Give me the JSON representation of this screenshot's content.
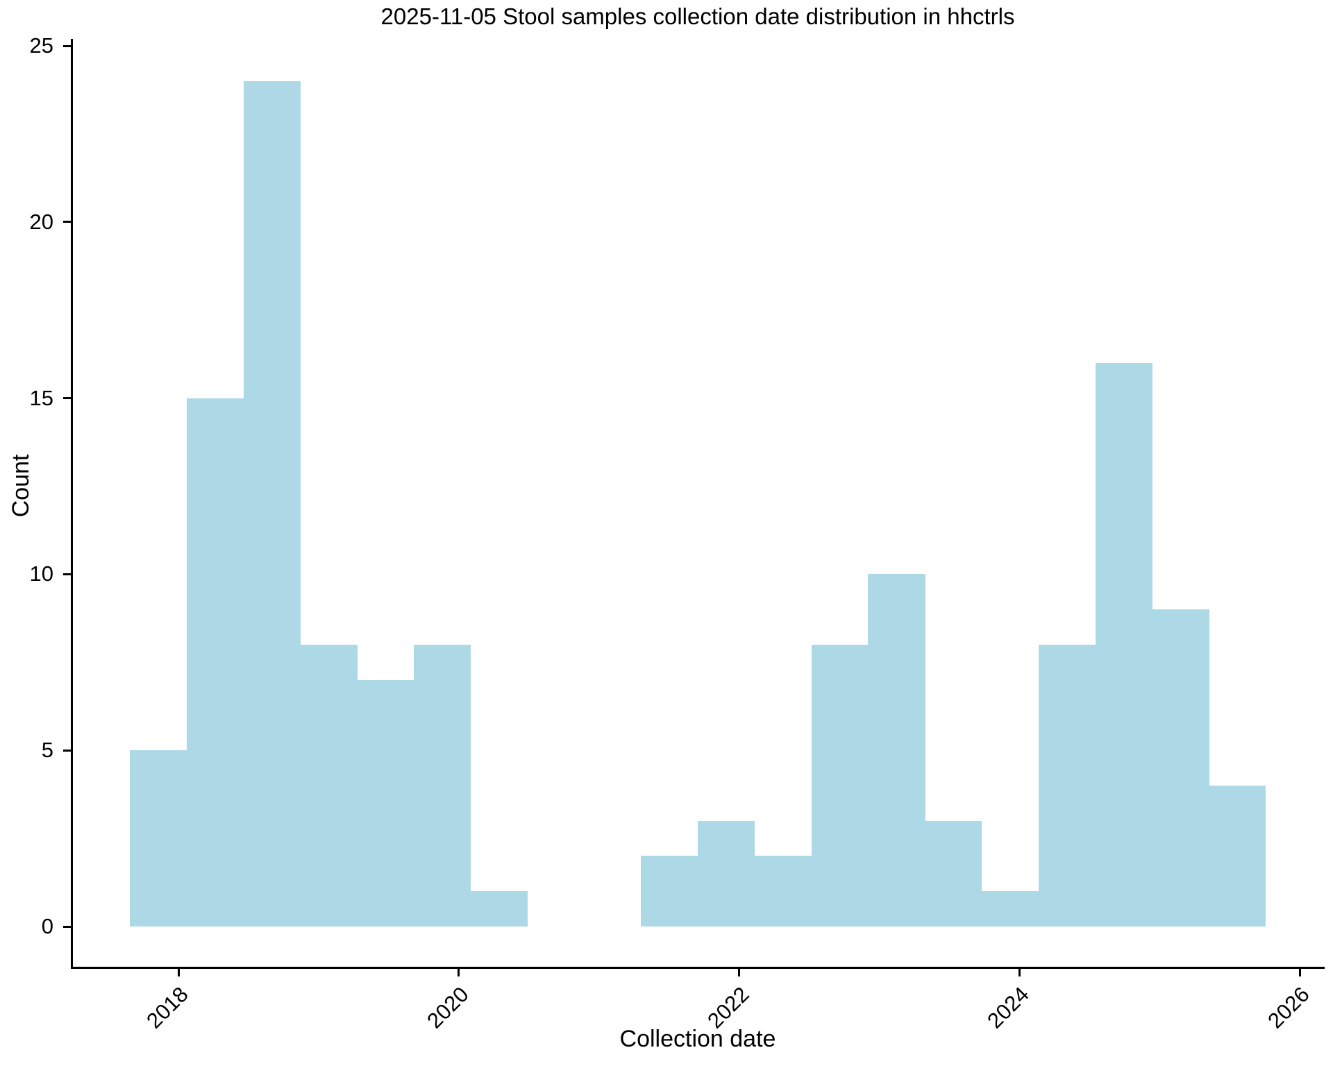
{
  "chart_data": {
    "type": "bar",
    "subtype": "histogram",
    "title": "2025-11-05 Stool samples collection date distribution in hhctrls",
    "xlabel": "Collection date",
    "ylabel": "Count",
    "bar_color": "#ADD8E6",
    "axis_color": "#000000",
    "background_color": "#ffffff",
    "grid": false,
    "legend": false,
    "ylim": [
      0,
      25
    ],
    "xlim_years": [
      2017.25,
      2026.2
    ],
    "x_tick_labels": [
      "2018",
      "2020",
      "2022",
      "2024",
      "2026"
    ],
    "y_tick_labels": [
      "0",
      "5",
      "10",
      "15",
      "20",
      "25"
    ],
    "bin_edges_years": [
      2017.653,
      2018.058,
      2018.464,
      2018.869,
      2019.274,
      2019.679,
      2020.084,
      2020.49,
      2020.895,
      2021.3,
      2021.705,
      2022.11,
      2022.516,
      2022.921,
      2023.326,
      2023.731,
      2024.136,
      2024.542,
      2024.947,
      2025.352,
      2025.757
    ],
    "counts": [
      5,
      15,
      24,
      8,
      7,
      8,
      1,
      0,
      0,
      2,
      3,
      2,
      8,
      10,
      3,
      1,
      8,
      16,
      9,
      4
    ],
    "total_samples": 134
  }
}
